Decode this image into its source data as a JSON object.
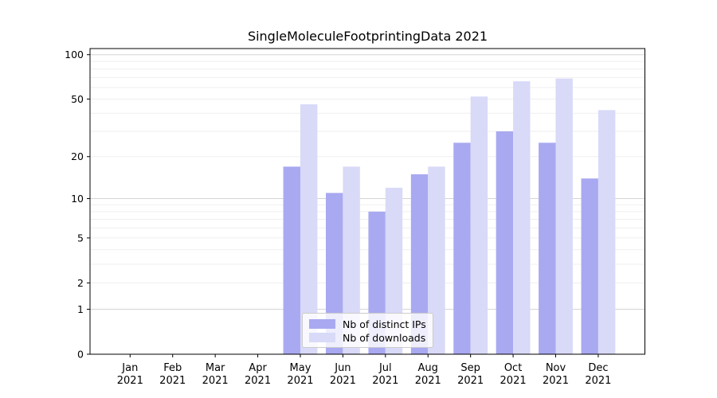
{
  "chart_data": {
    "type": "bar",
    "title": "SingleMoleculeFootprintingData 2021",
    "categories": [
      "Jan 2021",
      "Feb 2021",
      "Mar 2021",
      "Apr 2021",
      "May 2021",
      "Jun 2021",
      "Jul 2021",
      "Aug 2021",
      "Sep 2021",
      "Oct 2021",
      "Nov 2021",
      "Dec 2021"
    ],
    "series": [
      {
        "name": "Nb of distinct IPs",
        "color": "#a9a9f1",
        "values": [
          0,
          0,
          0,
          0,
          17,
          11,
          8,
          15,
          25,
          30,
          25,
          14
        ]
      },
      {
        "name": "Nb of downloads",
        "color": "#d9d9f8",
        "values": [
          0,
          0,
          0,
          0,
          46,
          17,
          12,
          17,
          52,
          66,
          69,
          42
        ]
      }
    ],
    "xlabel": "",
    "ylabel": "",
    "yscale": "log1p",
    "yticks": [
      0,
      1,
      2,
      5,
      10,
      20,
      50,
      100
    ],
    "ylim": [
      0,
      110
    ],
    "grid": true,
    "legend_position": "lower center",
    "axis_color": "#000000",
    "gridline_major_color": "#d5d5d5",
    "gridline_minor_color": "#efefef"
  }
}
